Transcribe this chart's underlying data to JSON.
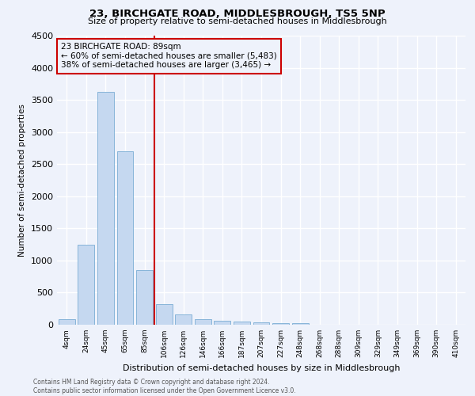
{
  "title1": "23, BIRCHGATE ROAD, MIDDLESBROUGH, TS5 5NP",
  "title2": "Size of property relative to semi-detached houses in Middlesbrough",
  "xlabel": "Distribution of semi-detached houses by size in Middlesbrough",
  "ylabel": "Number of semi-detached properties",
  "footer1": "Contains HM Land Registry data © Crown copyright and database right 2024.",
  "footer2": "Contains public sector information licensed under the Open Government Licence v3.0.",
  "categories": [
    "4sqm",
    "24sqm",
    "45sqm",
    "65sqm",
    "85sqm",
    "106sqm",
    "126sqm",
    "146sqm",
    "166sqm",
    "187sqm",
    "207sqm",
    "227sqm",
    "248sqm",
    "268sqm",
    "288sqm",
    "309sqm",
    "329sqm",
    "349sqm",
    "369sqm",
    "390sqm",
    "410sqm"
  ],
  "values": [
    90,
    1250,
    3620,
    2700,
    850,
    325,
    160,
    90,
    60,
    45,
    35,
    25,
    20,
    0,
    0,
    0,
    0,
    0,
    0,
    0,
    0
  ],
  "bar_color": "#c5d8f0",
  "bar_edge_color": "#7aadd4",
  "red_line_index": 4.5,
  "annotation_line1": "23 BIRCHGATE ROAD: 89sqm",
  "annotation_line2": "← 60% of semi-detached houses are smaller (5,483)",
  "annotation_line3": "38% of semi-detached houses are larger (3,465) →",
  "red_line_color": "#cc0000",
  "ylim": [
    0,
    4500
  ],
  "background_color": "#eef2fb",
  "grid_color": "#ffffff"
}
